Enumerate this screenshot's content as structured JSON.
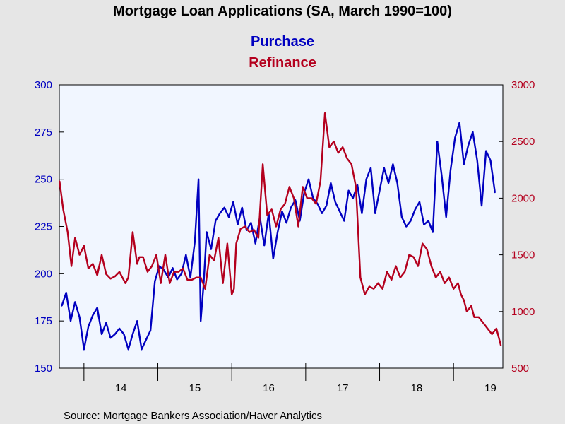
{
  "chart_data": {
    "type": "line",
    "title": "Mortgage Loan Applications (SA, March 1990=100)",
    "legend": {
      "placement": "top-center"
    },
    "source": "Source:  Mortgage Bankers Association/Haver Analytics",
    "x_axis": {
      "type": "year",
      "range": [
        2013.667,
        2019.667
      ],
      "tick_labels": [
        "14",
        "15",
        "16",
        "17",
        "18",
        "19"
      ]
    },
    "y_left": {
      "range": [
        150,
        300
      ],
      "ticks": [
        150,
        175,
        200,
        225,
        250,
        275,
        300
      ]
    },
    "y_right": {
      "range": [
        500,
        3000
      ],
      "ticks": [
        500,
        1000,
        1500,
        2000,
        2500,
        3000
      ]
    },
    "grid": false,
    "series": [
      {
        "name": "Purchase",
        "axis": "left",
        "color": "#0000c0",
        "x": [
          2013.7,
          2013.76,
          2013.82,
          2013.88,
          2013.94,
          2014.0,
          2014.06,
          2014.12,
          2014.18,
          2014.24,
          2014.3,
          2014.36,
          2014.42,
          2014.48,
          2014.54,
          2014.6,
          2014.66,
          2014.72,
          2014.78,
          2014.84,
          2014.9,
          2014.96,
          2015.02,
          2015.08,
          2015.14,
          2015.2,
          2015.26,
          2015.32,
          2015.38,
          2015.44,
          2015.5,
          2015.55,
          2015.58,
          2015.62,
          2015.66,
          2015.72,
          2015.78,
          2015.84,
          2015.9,
          2015.96,
          2016.02,
          2016.08,
          2016.14,
          2016.2,
          2016.26,
          2016.32,
          2016.38,
          2016.44,
          2016.5,
          2016.56,
          2016.62,
          2016.68,
          2016.74,
          2016.8,
          2016.86,
          2016.92,
          2016.98,
          2017.04,
          2017.1,
          2017.16,
          2017.22,
          2017.28,
          2017.34,
          2017.4,
          2017.46,
          2017.52,
          2017.58,
          2017.64,
          2017.7,
          2017.76,
          2017.82,
          2017.88,
          2017.94,
          2018.0,
          2018.06,
          2018.12,
          2018.18,
          2018.24,
          2018.3,
          2018.36,
          2018.42,
          2018.48,
          2018.54,
          2018.6,
          2018.66,
          2018.72,
          2018.78,
          2018.84,
          2018.9,
          2018.96,
          2019.02,
          2019.08,
          2019.14,
          2019.2,
          2019.26,
          2019.32,
          2019.38,
          2019.44,
          2019.5,
          2019.56
        ],
        "values": [
          183,
          190,
          175,
          185,
          177,
          160,
          172,
          178,
          182,
          168,
          174,
          166,
          168,
          171,
          168,
          160,
          168,
          175,
          160,
          165,
          170,
          196,
          204,
          202,
          198,
          203,
          197,
          200,
          210,
          198,
          217,
          250,
          175,
          195,
          222,
          213,
          228,
          232,
          235,
          230,
          238,
          226,
          235,
          223,
          227,
          216,
          230,
          215,
          232,
          208,
          222,
          233,
          227,
          235,
          239,
          228,
          243,
          250,
          240,
          237,
          232,
          236,
          248,
          238,
          233,
          228,
          244,
          240,
          247,
          232,
          250,
          256,
          232,
          244,
          256,
          248,
          258,
          248,
          230,
          225,
          228,
          234,
          238,
          226,
          228,
          222,
          270,
          252,
          230,
          255,
          272,
          280,
          258,
          268,
          275,
          260,
          236,
          265,
          260,
          243
        ]
      },
      {
        "name": "Refinance",
        "axis": "right",
        "color": "#b4001e",
        "x": [
          2013.67,
          2013.72,
          2013.78,
          2013.83,
          2013.88,
          2013.94,
          2014.0,
          2014.06,
          2014.12,
          2014.18,
          2014.24,
          2014.3,
          2014.36,
          2014.42,
          2014.48,
          2014.52,
          2014.56,
          2014.6,
          2014.66,
          2014.72,
          2014.75,
          2014.8,
          2014.86,
          2014.92,
          2014.98,
          2015.04,
          2015.1,
          2015.16,
          2015.22,
          2015.28,
          2015.34,
          2015.4,
          2015.46,
          2015.52,
          2015.58,
          2015.64,
          2015.7,
          2015.76,
          2015.82,
          2015.88,
          2015.94,
          2016.0,
          2016.03,
          2016.06,
          2016.12,
          2016.18,
          2016.24,
          2016.3,
          2016.36,
          2016.42,
          2016.48,
          2016.54,
          2016.6,
          2016.66,
          2016.72,
          2016.78,
          2016.84,
          2016.9,
          2016.96,
          2017.02,
          2017.08,
          2017.14,
          2017.2,
          2017.26,
          2017.32,
          2017.38,
          2017.44,
          2017.5,
          2017.56,
          2017.62,
          2017.68,
          2017.74,
          2017.8,
          2017.86,
          2017.92,
          2017.98,
          2018.04,
          2018.1,
          2018.16,
          2018.22,
          2018.28,
          2018.34,
          2018.4,
          2018.46,
          2018.52,
          2018.58,
          2018.64,
          2018.7,
          2018.76,
          2018.82,
          2018.88,
          2018.94,
          2019.0,
          2019.06,
          2019.1,
          2019.14,
          2019.18,
          2019.24,
          2019.28,
          2019.34,
          2019.4,
          2019.46,
          2019.52,
          2019.58,
          2019.64
        ],
        "values": [
          2150,
          1900,
          1700,
          1400,
          1650,
          1500,
          1580,
          1380,
          1420,
          1320,
          1500,
          1330,
          1290,
          1310,
          1350,
          1300,
          1250,
          1300,
          1700,
          1420,
          1480,
          1480,
          1350,
          1400,
          1500,
          1250,
          1500,
          1250,
          1350,
          1350,
          1380,
          1280,
          1280,
          1300,
          1300,
          1200,
          1500,
          1450,
          1650,
          1250,
          1600,
          1150,
          1200,
          1600,
          1730,
          1750,
          1700,
          1720,
          1650,
          2300,
          1850,
          1900,
          1750,
          1900,
          1950,
          2100,
          2000,
          1750,
          2100,
          2000,
          2000,
          1950,
          2150,
          2750,
          2450,
          2500,
          2400,
          2450,
          2350,
          2300,
          2100,
          1300,
          1150,
          1220,
          1200,
          1250,
          1200,
          1350,
          1280,
          1400,
          1300,
          1350,
          1500,
          1480,
          1400,
          1600,
          1550,
          1400,
          1300,
          1350,
          1250,
          1300,
          1200,
          1250,
          1150,
          1100,
          1000,
          1050,
          950,
          950,
          900,
          850,
          800,
          850,
          700
        ]
      }
    ]
  }
}
